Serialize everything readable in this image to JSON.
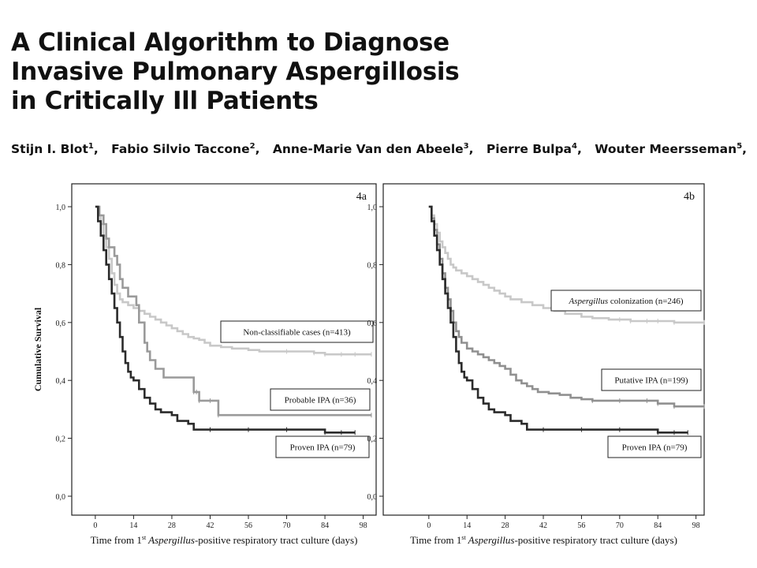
{
  "header": {
    "title_lines": [
      "A Clinical Algorithm to Diagnose",
      "Invasive Pulmonary Aspergillosis",
      "in Critically Ill Patients"
    ],
    "authors": [
      {
        "name": "Stijn I. Blot",
        "sup": "1"
      },
      {
        "name": "Fabio Silvio Taccone",
        "sup": "2"
      },
      {
        "name": "Anne-Marie Van den Abeele",
        "sup": "3"
      },
      {
        "name": "Pierre Bulpa",
        "sup": "4"
      },
      {
        "name": "Wouter Meersseman",
        "sup": "5"
      }
    ],
    "trailing_comma": ","
  },
  "chart_data": [
    {
      "type": "line",
      "panel_label": "4a",
      "ylabel": "Cumulative Survival",
      "xlabel_pre": "Time from 1",
      "xlabel_sup": "st",
      "xlabel_italic": " Aspergillus",
      "xlabel_post": "-positive respiratory tract culture (days)",
      "xticks": [
        "0",
        "14",
        "28",
        "42",
        "56",
        "70",
        "84",
        "98"
      ],
      "yticks": [
        "0,0",
        "0,2",
        "0,4",
        "0,6",
        "0,8",
        "1,0"
      ],
      "xlim": [
        -4,
        101
      ],
      "ylim": [
        -0.03,
        1.06
      ],
      "series": [
        {
          "name": "Non-classifiable cases (n=413)",
          "legend_italic": "",
          "color": "#c8c8c8",
          "x": [
            0,
            1,
            2,
            3,
            4,
            5,
            6,
            7,
            8,
            9,
            10,
            12,
            14,
            16,
            18,
            20,
            22,
            24,
            26,
            28,
            30,
            32,
            34,
            36,
            38,
            40,
            42,
            46,
            50,
            56,
            60,
            70,
            80,
            84,
            90,
            95,
            101
          ],
          "y": [
            1.0,
            0.97,
            0.94,
            0.9,
            0.86,
            0.82,
            0.77,
            0.73,
            0.7,
            0.68,
            0.67,
            0.66,
            0.65,
            0.64,
            0.63,
            0.62,
            0.61,
            0.6,
            0.59,
            0.58,
            0.57,
            0.56,
            0.55,
            0.545,
            0.54,
            0.53,
            0.52,
            0.515,
            0.51,
            0.505,
            0.5,
            0.5,
            0.495,
            0.49,
            0.49,
            0.49,
            0.49
          ]
        },
        {
          "name": "Probable IPA (n=36)",
          "legend_italic": "",
          "color": "#9a9a9a",
          "x": [
            0,
            1.5,
            3,
            4,
            5,
            7,
            8,
            9,
            10,
            12,
            14,
            15,
            16,
            18,
            19,
            20,
            22,
            23,
            25,
            28,
            30,
            35,
            36,
            37,
            38,
            42,
            45,
            101
          ],
          "y": [
            1.0,
            0.97,
            0.94,
            0.89,
            0.86,
            0.83,
            0.8,
            0.75,
            0.72,
            0.69,
            0.69,
            0.66,
            0.6,
            0.53,
            0.5,
            0.47,
            0.44,
            0.44,
            0.41,
            0.41,
            0.41,
            0.41,
            0.36,
            0.36,
            0.33,
            0.33,
            0.28,
            0.28
          ]
        },
        {
          "name": "Proven IPA (n=79)",
          "legend_italic": "",
          "color": "#2b2b2b",
          "x": [
            0,
            1,
            2,
            3,
            4,
            5,
            6,
            7,
            8,
            9,
            10,
            11,
            12,
            13,
            14,
            16,
            18,
            20,
            22,
            24,
            26,
            28,
            30,
            34,
            36,
            38,
            42,
            56,
            70,
            84,
            90,
            95
          ],
          "y": [
            1.0,
            0.95,
            0.9,
            0.85,
            0.8,
            0.75,
            0.7,
            0.65,
            0.6,
            0.55,
            0.5,
            0.46,
            0.43,
            0.41,
            0.4,
            0.37,
            0.34,
            0.32,
            0.3,
            0.29,
            0.29,
            0.28,
            0.26,
            0.25,
            0.23,
            0.23,
            0.23,
            0.23,
            0.23,
            0.22,
            0.22,
            0.22
          ]
        }
      ]
    },
    {
      "type": "line",
      "panel_label": "4b",
      "ylabel": "",
      "xlabel_pre": "Time from 1",
      "xlabel_sup": "st",
      "xlabel_italic": " Aspergillus",
      "xlabel_post": "-positive respiratory tract culture (days)",
      "xticks": [
        "0",
        "14",
        "28",
        "42",
        "56",
        "70",
        "84",
        "98"
      ],
      "yticks": [
        "0,0",
        "0,2",
        "0,4",
        "0,6",
        "0,8",
        "1,0"
      ],
      "xlim": [
        -4,
        101
      ],
      "ylim": [
        -0.03,
        1.06
      ],
      "series": [
        {
          "name": " colonization (n=246)",
          "legend_italic": "Aspergillus",
          "color": "#c8c8c8",
          "x": [
            0,
            1,
            2,
            3,
            4,
            5,
            6,
            7,
            8,
            9,
            10,
            12,
            14,
            16,
            18,
            20,
            22,
            24,
            26,
            28,
            30,
            34,
            38,
            42,
            46,
            50,
            56,
            60,
            66,
            70,
            74,
            80,
            84,
            90,
            101
          ],
          "y": [
            1.0,
            0.97,
            0.94,
            0.91,
            0.88,
            0.86,
            0.84,
            0.82,
            0.8,
            0.79,
            0.78,
            0.77,
            0.76,
            0.75,
            0.74,
            0.73,
            0.72,
            0.71,
            0.7,
            0.69,
            0.68,
            0.67,
            0.66,
            0.65,
            0.64,
            0.63,
            0.62,
            0.615,
            0.61,
            0.61,
            0.605,
            0.605,
            0.605,
            0.6,
            0.6
          ]
        },
        {
          "name": "Putative IPA (n=199)",
          "legend_italic": "",
          "color": "#909090",
          "x": [
            0,
            1,
            2,
            3,
            4,
            5,
            6,
            7,
            8,
            9,
            10,
            11,
            12,
            14,
            16,
            18,
            20,
            22,
            24,
            26,
            28,
            30,
            32,
            34,
            36,
            38,
            40,
            44,
            48,
            52,
            56,
            60,
            70,
            80,
            84,
            90,
            101
          ],
          "y": [
            1.0,
            0.96,
            0.92,
            0.87,
            0.82,
            0.77,
            0.72,
            0.68,
            0.64,
            0.6,
            0.57,
            0.55,
            0.53,
            0.51,
            0.5,
            0.49,
            0.48,
            0.47,
            0.46,
            0.45,
            0.44,
            0.42,
            0.4,
            0.39,
            0.38,
            0.37,
            0.36,
            0.355,
            0.35,
            0.34,
            0.335,
            0.33,
            0.33,
            0.33,
            0.32,
            0.31,
            0.31
          ]
        },
        {
          "name": "Proven IPA (n=79)",
          "legend_italic": "",
          "color": "#2b2b2b",
          "x": [
            0,
            1,
            2,
            3,
            4,
            5,
            6,
            7,
            8,
            9,
            10,
            11,
            12,
            13,
            14,
            16,
            18,
            20,
            22,
            24,
            26,
            28,
            30,
            34,
            36,
            38,
            42,
            56,
            70,
            84,
            90,
            95
          ],
          "y": [
            1.0,
            0.95,
            0.9,
            0.85,
            0.8,
            0.75,
            0.7,
            0.65,
            0.6,
            0.55,
            0.5,
            0.46,
            0.43,
            0.41,
            0.4,
            0.37,
            0.34,
            0.32,
            0.3,
            0.29,
            0.29,
            0.28,
            0.26,
            0.25,
            0.23,
            0.23,
            0.23,
            0.23,
            0.23,
            0.22,
            0.22,
            0.22
          ]
        }
      ]
    }
  ]
}
